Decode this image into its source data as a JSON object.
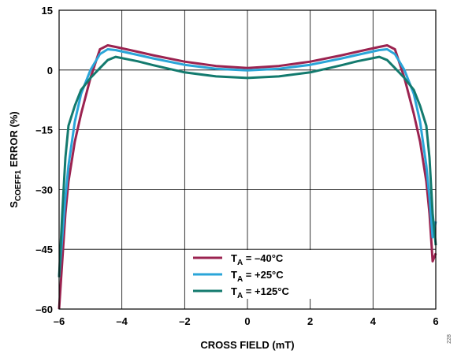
{
  "figure_id": "228",
  "chart_data": {
    "type": "line",
    "title": "",
    "xlabel": "CROSS FIELD (mT)",
    "ylabel": {
      "main": "S",
      "sub": "COEFF1",
      "rest": " ERROR (%)"
    },
    "xlim": [
      -6,
      6
    ],
    "ylim": [
      -60,
      15
    ],
    "xticks": [
      -6,
      -4,
      -2,
      0,
      2,
      4,
      6
    ],
    "yticks": [
      15,
      0,
      -15,
      -30,
      -45,
      -60
    ],
    "xtick_labels": [
      "–6",
      "–4",
      "–2",
      "0",
      "2",
      "4",
      "6"
    ],
    "ytick_labels": [
      "15",
      "0",
      "–15",
      "–30",
      "–45",
      "–60"
    ],
    "grid": true,
    "legend_position": "bottom-center",
    "series": [
      {
        "name": "T_A = –40°C",
        "label_main": "T",
        "label_sub": "A",
        "label_rest": " = –40°C",
        "color": "#9b2350",
        "x": [
          -6.0,
          -5.9,
          -5.8,
          -5.7,
          -5.5,
          -5.3,
          -5.0,
          -4.7,
          -4.45,
          -4.2,
          -3.5,
          -3.0,
          -2.0,
          -1.0,
          0.0,
          1.0,
          2.0,
          3.0,
          3.5,
          4.2,
          4.45,
          4.7,
          5.0,
          5.3,
          5.5,
          5.7,
          5.8,
          5.9,
          6.0
        ],
        "y": [
          -60,
          -48,
          -36,
          -28,
          -18,
          -11,
          -2,
          5.2,
          6.2,
          5.8,
          4.6,
          3.7,
          2.1,
          1.0,
          0.5,
          1.0,
          2.1,
          3.7,
          4.6,
          5.8,
          6.2,
          5.2,
          -2,
          -11,
          -18,
          -28,
          -36,
          -48,
          -46
        ]
      },
      {
        "name": "T_A = +25°C",
        "label_main": "T",
        "label_sub": "A",
        "label_rest": " = +25°C",
        "color": "#2aa5d8",
        "x": [
          -6.0,
          -5.9,
          -5.8,
          -5.7,
          -5.5,
          -5.3,
          -5.0,
          -4.7,
          -4.45,
          -4.2,
          -3.5,
          -3.0,
          -2.0,
          -1.0,
          0.0,
          1.0,
          2.0,
          3.0,
          3.5,
          4.2,
          4.45,
          4.7,
          5.0,
          5.3,
          5.5,
          5.7,
          5.8,
          5.9,
          6.0
        ],
        "y": [
          -52,
          -42,
          -32,
          -24,
          -13,
          -6,
          0,
          4.0,
          5.2,
          5.0,
          3.8,
          2.9,
          1.3,
          0.3,
          -0.1,
          0.3,
          1.3,
          2.9,
          3.8,
          5.0,
          5.2,
          4.0,
          0,
          -6,
          -13,
          -24,
          -32,
          -42,
          -38
        ]
      },
      {
        "name": "T_A = +125°C",
        "label_main": "T",
        "label_sub": "A",
        "label_rest": " = +125°C",
        "color": "#137a6e",
        "x": [
          -6.0,
          -5.9,
          -5.8,
          -5.7,
          -5.5,
          -5.3,
          -5.0,
          -4.7,
          -4.45,
          -4.2,
          -3.5,
          -3.0,
          -2.0,
          -1.0,
          0.0,
          1.0,
          2.0,
          3.0,
          3.5,
          4.2,
          4.45,
          4.7,
          5.0,
          5.3,
          5.5,
          5.7,
          5.8,
          5.9,
          6.0
        ],
        "y": [
          -52,
          -36,
          -22,
          -14,
          -9,
          -5,
          -2,
          0.5,
          2.5,
          3.3,
          2.2,
          1.2,
          -0.6,
          -1.6,
          -2.0,
          -1.6,
          -0.6,
          1.2,
          2.2,
          3.3,
          2.5,
          0.5,
          -2,
          -5,
          -9,
          -14,
          -22,
          -36,
          -44
        ]
      }
    ]
  }
}
